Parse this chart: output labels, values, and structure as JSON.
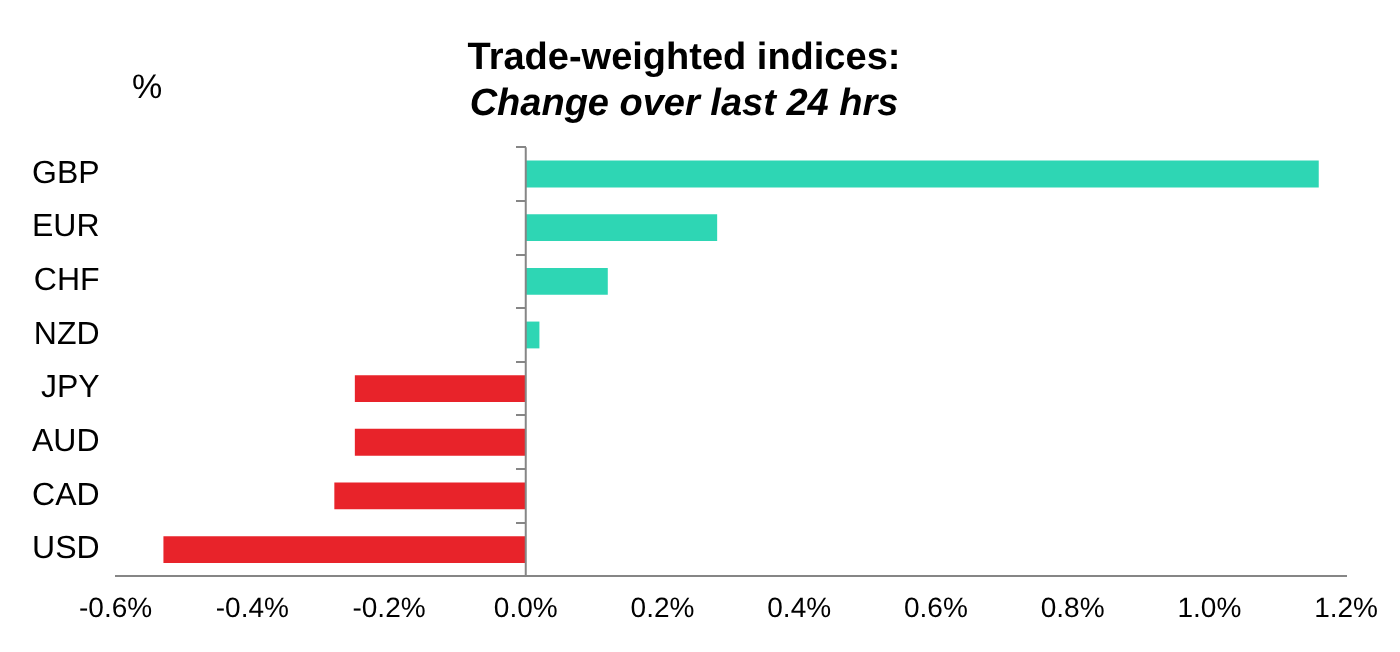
{
  "chart_data": {
    "type": "bar",
    "orientation": "horizontal",
    "title": "Trade-weighted indices:",
    "subtitle": "Change over last 24 hrs",
    "annotations": [
      "%"
    ],
    "categories": [
      "GBP",
      "EUR",
      "CHF",
      "NZD",
      "JPY",
      "AUD",
      "CAD",
      "USD"
    ],
    "values": [
      1.16,
      0.28,
      0.12,
      0.02,
      -0.25,
      -0.25,
      -0.28,
      -0.53
    ],
    "colors": [
      "#2ed6b4",
      "#2ed6b4",
      "#2ed6b4",
      "#2ed6b4",
      "#e8232a",
      "#e8232a",
      "#e8232a",
      "#e8232a"
    ],
    "xlim": [
      -0.6,
      1.2
    ],
    "xticks": [
      {
        "value": -0.6,
        "label": "-0.6%"
      },
      {
        "value": -0.4,
        "label": "-0.4%"
      },
      {
        "value": -0.2,
        "label": "-0.2%"
      },
      {
        "value": 0,
        "label": "0.0%"
      },
      {
        "value": 0.2,
        "label": "0.2%"
      },
      {
        "value": 0.4,
        "label": "0.4%"
      },
      {
        "value": 0.6,
        "label": "0.6%"
      },
      {
        "value": 0.8,
        "label": "0.8%"
      },
      {
        "value": 1,
        "label": "1.0%"
      },
      {
        "value": 1.2,
        "label": "1.2%"
      }
    ],
    "ref_lines": [
      {
        "axis": "x",
        "value": 0,
        "color": "#868686"
      }
    ],
    "grid": false,
    "legend": false
  }
}
